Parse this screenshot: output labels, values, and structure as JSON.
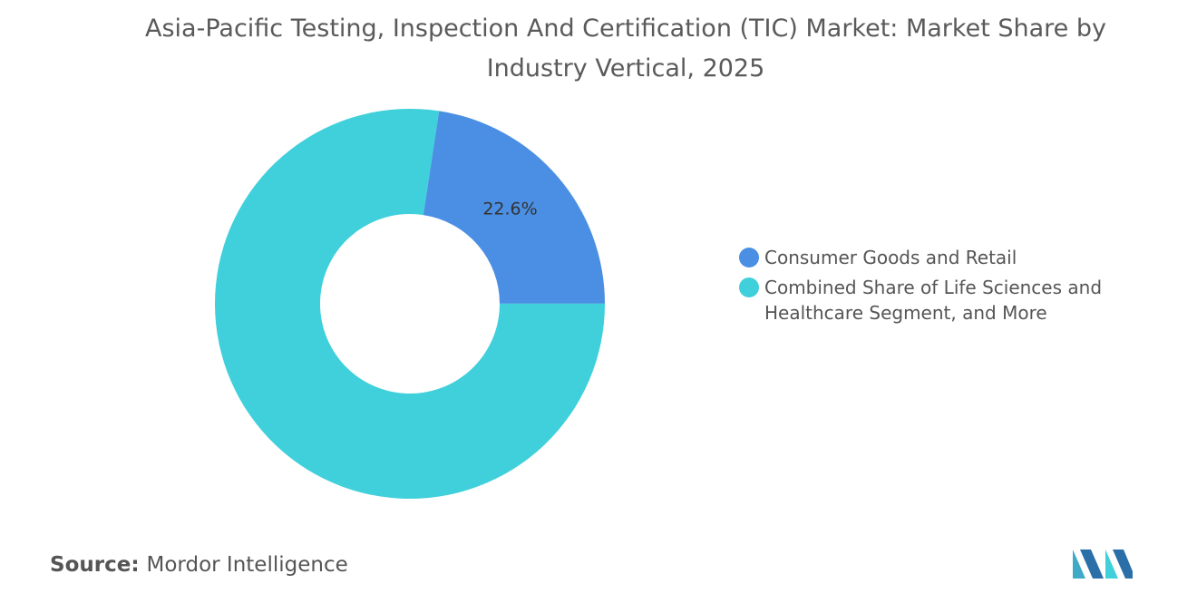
{
  "chart_data": {
    "type": "donut",
    "title": "Asia-Pacific Testing, Inspection And Certification (TIC) Market: Market Share by Industry Vertical, 2025",
    "categories": [
      "Consumer Goods and Retail",
      "Combined Share of Life Sciences and Healthcare Segment, and More"
    ],
    "values": [
      22.6,
      77.4
    ],
    "value_labels": [
      "22.6%",
      null
    ],
    "colors": [
      "#4a8fe3",
      "#3fd0db"
    ],
    "legend": "right"
  },
  "source": {
    "label": "Source:",
    "name": "Mordor Intelligence"
  }
}
